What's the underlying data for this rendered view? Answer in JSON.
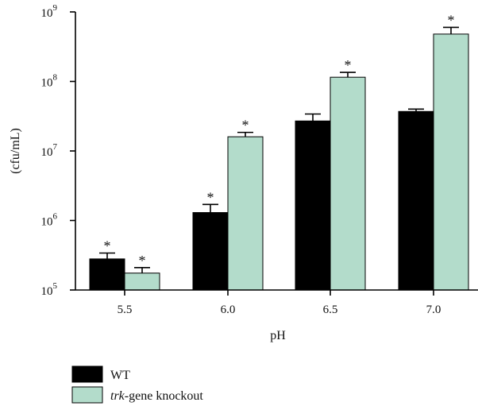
{
  "chart_data": {
    "type": "bar",
    "title": "",
    "xlabel": "pH",
    "ylabel": "(cfu/mL)",
    "categories": [
      "5.5",
      "6.0",
      "6.5",
      "7.0"
    ],
    "y_scale": "log",
    "ylim": [
      100000,
      1000000000
    ],
    "y_ticks": [
      {
        "value": 100000,
        "base": "10",
        "exp": "5"
      },
      {
        "value": 1000000,
        "base": "10",
        "exp": "6"
      },
      {
        "value": 10000000,
        "base": "10",
        "exp": "7"
      },
      {
        "value": 100000000,
        "base": "10",
        "exp": "8"
      },
      {
        "value": 1000000000,
        "base": "10",
        "exp": "9"
      }
    ],
    "grid": false,
    "legend_position": "bottom-left",
    "significance_marker": "*",
    "series": [
      {
        "name": "WT",
        "name_italic_part": "",
        "name_rest": "WT",
        "color": "#000000",
        "values": [
          280000,
          1300000,
          27000000,
          37000000
        ],
        "error_upper": [
          340000,
          1700000,
          34000000,
          40000000
        ],
        "significant": [
          true,
          true,
          false,
          false
        ]
      },
      {
        "name": "trk-gene knockout",
        "name_italic_part": "trk",
        "name_rest": "-gene knockout",
        "color": "#b3dccb",
        "values": [
          175000,
          16000000,
          115000000,
          480000000
        ],
        "error_upper": [
          210000,
          18500000,
          135000000,
          600000000
        ],
        "significant": [
          true,
          true,
          true,
          true
        ]
      }
    ]
  }
}
